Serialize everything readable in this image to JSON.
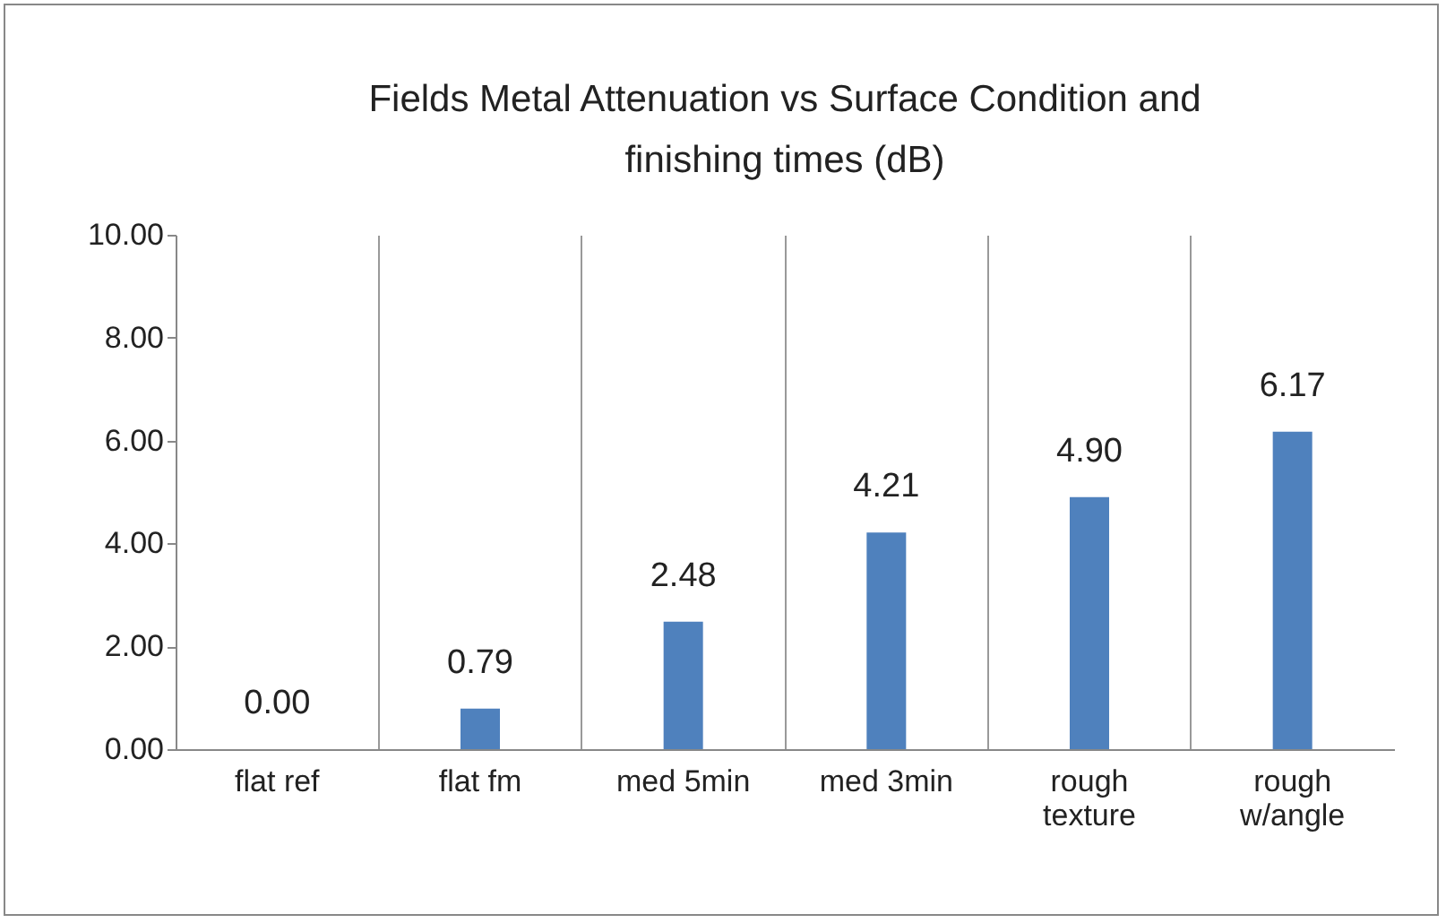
{
  "chart_data": {
    "type": "bar",
    "title": "Fields Metal Attenuation vs Surface Condition and finishing times (dB)",
    "categories": [
      "flat ref",
      "flat fm",
      "med 5min",
      "med 3min",
      "rough texture",
      "rough w/angle"
    ],
    "values": [
      0,
      0.79,
      2.48,
      4.21,
      4.9,
      6.17
    ],
    "value_labels": [
      "0.00",
      "0.79",
      "2.48",
      "4.21",
      "4.90",
      "6.17"
    ],
    "color": "#4f81bd",
    "ylim": [
      0,
      10
    ],
    "yticks": [
      {
        "value": 0,
        "label": "0.00"
      },
      {
        "value": 2,
        "label": "2.00"
      },
      {
        "value": 4,
        "label": "4.00"
      },
      {
        "value": 6,
        "label": "6.00"
      },
      {
        "value": 8,
        "label": "8.00"
      },
      {
        "value": 10,
        "label": "10.00"
      }
    ],
    "grid": "x"
  }
}
